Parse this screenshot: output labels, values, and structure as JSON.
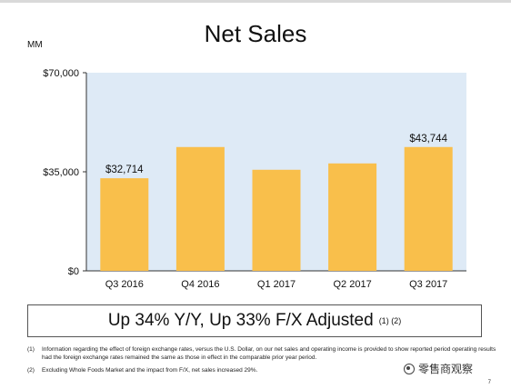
{
  "title": "Net Sales",
  "unit": "MM",
  "chart_data": {
    "type": "bar",
    "categories": [
      "Q3 2016",
      "Q4 2016",
      "Q1 2017",
      "Q2 2017",
      "Q3 2017"
    ],
    "values": [
      32714,
      43741,
      35714,
      37955,
      43744
    ],
    "data_labels": [
      "$32,714",
      "",
      "",
      "",
      "$43,744"
    ],
    "ylim": [
      0,
      70000
    ],
    "yticks": [
      0,
      35000,
      70000
    ],
    "ytick_labels": [
      "$0",
      "$35,000",
      "$70,000"
    ],
    "bar_color": "#f9bf4b",
    "plot_background": "#deeaf6",
    "grid": false
  },
  "summary": {
    "text": "Up 34% Y/Y, Up 33% F/X Adjusted",
    "notes": "(1) (2)"
  },
  "footnotes": [
    {
      "num": "(1)",
      "text": "Information regarding the effect of foreign exchange rates, versus the U.S. Dollar, on our net sales and operating income is provided to show reported period operating results had the foreign exchange rates remained the same as those in effect in the comparable prior year period."
    },
    {
      "num": "(2)",
      "text": "Excluding Whole Foods Market and the impact from F/X, net sales increased 29%."
    }
  ],
  "page_number": "7",
  "watermark": "零售商观察"
}
